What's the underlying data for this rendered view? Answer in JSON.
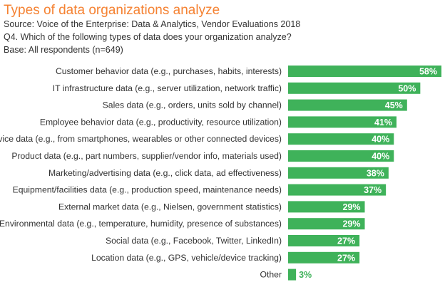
{
  "chart_data": {
    "type": "bar",
    "orientation": "horizontal",
    "title": "Types of data organizations analyze",
    "subtitle": [
      "Source: Voice of the Enterprise: Data & Analytics, Vendor Evaluations 2018",
      "Q4. Which of the following types of data does your organization analyze?",
      "Base: All respondents (n=649)"
    ],
    "categories": [
      "Customer behavior data (e.g., purchases, habits, interests)",
      "IT infrastructure data (e.g., server utilization, network traffic)",
      "Sales data (e.g., orders, units sold by channel)",
      "Employee behavior data (e.g., productivity, resource utilization)",
      "Device data (e.g., from smartphones, wearables or other connected devices)",
      "Product data (e.g., part numbers, supplier/vendor info, materials used)",
      "Marketing/advertising data (e.g., click data, ad effectiveness)",
      "Equipment/facilities data (e.g., production speed, maintenance needs)",
      "External market data (e.g., Nielsen, government statistics)",
      "Environmental data (e.g., temperature, humidity, presence of substances)",
      "Social data (e.g., Facebook, Twitter, LinkedIn)",
      "Location data (e.g., GPS, vehicle/device tracking)",
      "Other"
    ],
    "values": [
      58,
      50,
      45,
      41,
      40,
      40,
      38,
      37,
      29,
      29,
      27,
      27,
      3
    ],
    "value_labels": [
      "58%",
      "50%",
      "45%",
      "41%",
      "40%",
      "40%",
      "38%",
      "37%",
      "29%",
      "29%",
      "27%",
      "27%",
      "3%"
    ],
    "unit": "%",
    "xlim": [
      0,
      58
    ],
    "grid": false,
    "colors": {
      "bar": "#3fb25a",
      "title": "#f58232",
      "label_inside": "#ffffff"
    }
  }
}
